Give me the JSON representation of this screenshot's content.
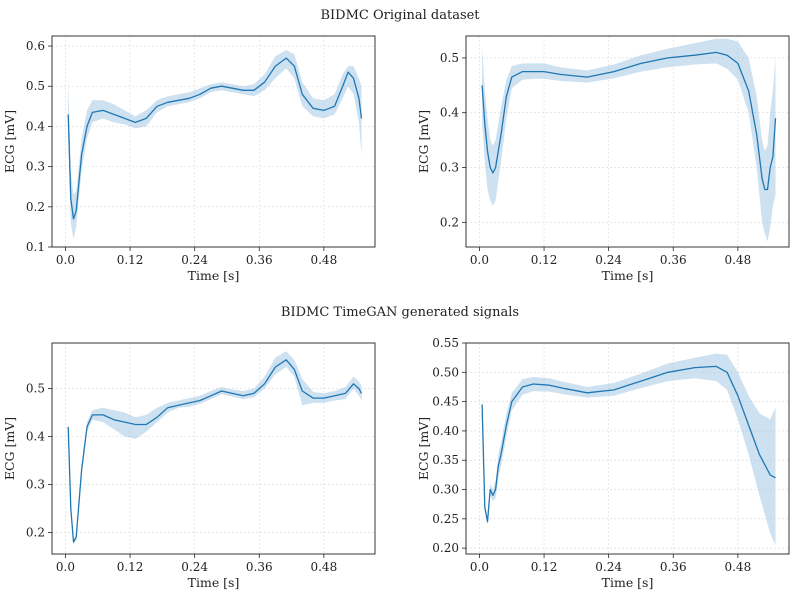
{
  "figure": {
    "top_title": "BIDMC Original dataset",
    "bottom_title": "BIDMC TimeGAN generated signals"
  },
  "colors": {
    "line": "#1f77b4",
    "band": "#a6c8e4",
    "grid": "#d9d9d9",
    "frame": "#222222"
  },
  "chart_data": [
    {
      "type": "line",
      "panel": "original-left",
      "xlabel": "Time [s]",
      "ylabel": "ECG [mV]",
      "xlim": [
        -0.025,
        0.575
      ],
      "ylim": [
        0.1,
        0.625
      ],
      "xticks": [
        0.0,
        0.12,
        0.24,
        0.36,
        0.48
      ],
      "xtick_labels": [
        "0.0",
        "0.12",
        "0.24",
        "0.36",
        "0.48"
      ],
      "yticks": [
        0.1,
        0.2,
        0.3,
        0.4,
        0.5,
        0.6
      ],
      "ytick_labels": [
        "0.1",
        "0.2",
        "0.3",
        "0.4",
        "0.5",
        "0.6"
      ],
      "grid": true,
      "series": [
        {
          "x": [
            0.005,
            0.01,
            0.015,
            0.02,
            0.03,
            0.04,
            0.05,
            0.07,
            0.09,
            0.11,
            0.13,
            0.15,
            0.17,
            0.19,
            0.21,
            0.23,
            0.25,
            0.27,
            0.29,
            0.31,
            0.33,
            0.35,
            0.37,
            0.39,
            0.41,
            0.425,
            0.44,
            0.46,
            0.48,
            0.5,
            0.515,
            0.525,
            0.535,
            0.545,
            0.55
          ],
          "y": [
            0.43,
            0.22,
            0.17,
            0.19,
            0.33,
            0.4,
            0.435,
            0.44,
            0.43,
            0.42,
            0.41,
            0.42,
            0.45,
            0.46,
            0.465,
            0.47,
            0.48,
            0.495,
            0.5,
            0.495,
            0.49,
            0.49,
            0.51,
            0.55,
            0.57,
            0.55,
            0.48,
            0.445,
            0.44,
            0.45,
            0.5,
            0.535,
            0.52,
            0.47,
            0.42
          ],
          "lower": [
            0.37,
            0.16,
            0.12,
            0.15,
            0.29,
            0.37,
            0.41,
            0.42,
            0.41,
            0.405,
            0.395,
            0.4,
            0.435,
            0.45,
            0.455,
            0.46,
            0.47,
            0.485,
            0.49,
            0.485,
            0.48,
            0.475,
            0.49,
            0.52,
            0.545,
            0.52,
            0.45,
            0.425,
            0.42,
            0.43,
            0.47,
            0.5,
            0.48,
            0.41,
            0.33
          ],
          "upper": [
            0.52,
            0.29,
            0.23,
            0.24,
            0.37,
            0.44,
            0.465,
            0.465,
            0.455,
            0.44,
            0.425,
            0.44,
            0.465,
            0.475,
            0.48,
            0.485,
            0.495,
            0.505,
            0.51,
            0.505,
            0.5,
            0.505,
            0.53,
            0.575,
            0.59,
            0.58,
            0.51,
            0.47,
            0.465,
            0.48,
            0.53,
            0.55,
            0.55,
            0.52,
            0.5
          ]
        }
      ]
    },
    {
      "type": "line",
      "panel": "original-right",
      "xlabel": "Time [s]",
      "ylabel": "ECG [mV]",
      "xlim": [
        -0.025,
        0.575
      ],
      "ylim": [
        0.155,
        0.54
      ],
      "xticks": [
        0.0,
        0.12,
        0.24,
        0.36,
        0.48
      ],
      "xtick_labels": [
        "0.0",
        "0.12",
        "0.24",
        "0.36",
        "0.48"
      ],
      "yticks": [
        0.2,
        0.3,
        0.4,
        0.5
      ],
      "ytick_labels": [
        "0.2",
        "0.3",
        "0.4",
        "0.5"
      ],
      "grid": true,
      "series": [
        {
          "x": [
            0.005,
            0.01,
            0.015,
            0.02,
            0.025,
            0.03,
            0.04,
            0.05,
            0.06,
            0.08,
            0.1,
            0.12,
            0.15,
            0.2,
            0.25,
            0.3,
            0.35,
            0.4,
            0.44,
            0.46,
            0.48,
            0.5,
            0.515,
            0.525,
            0.53,
            0.535,
            0.54,
            0.545,
            0.55
          ],
          "y": [
            0.45,
            0.38,
            0.33,
            0.3,
            0.29,
            0.3,
            0.36,
            0.43,
            0.465,
            0.475,
            0.475,
            0.475,
            0.47,
            0.465,
            0.475,
            0.49,
            0.5,
            0.505,
            0.51,
            0.505,
            0.49,
            0.44,
            0.36,
            0.28,
            0.26,
            0.26,
            0.3,
            0.32,
            0.39
          ],
          "lower": [
            0.38,
            0.31,
            0.26,
            0.24,
            0.23,
            0.24,
            0.31,
            0.39,
            0.445,
            0.46,
            0.462,
            0.462,
            0.458,
            0.455,
            0.463,
            0.475,
            0.483,
            0.488,
            0.49,
            0.48,
            0.46,
            0.4,
            0.3,
            0.2,
            0.18,
            0.165,
            0.19,
            0.23,
            0.25
          ],
          "upper": [
            0.52,
            0.44,
            0.39,
            0.35,
            0.34,
            0.35,
            0.41,
            0.46,
            0.485,
            0.49,
            0.49,
            0.49,
            0.483,
            0.477,
            0.488,
            0.505,
            0.517,
            0.527,
            0.535,
            0.535,
            0.53,
            0.5,
            0.43,
            0.35,
            0.33,
            0.34,
            0.4,
            0.44,
            0.5
          ]
        }
      ]
    },
    {
      "type": "line",
      "panel": "generated-left",
      "xlabel": "Time [s]",
      "ylabel": "ECG [mV]",
      "xlim": [
        -0.025,
        0.575
      ],
      "ylim": [
        0.155,
        0.595
      ],
      "xticks": [
        0.0,
        0.12,
        0.24,
        0.36,
        0.48
      ],
      "xtick_labels": [
        "0.0",
        "0.12",
        "0.24",
        "0.36",
        "0.48"
      ],
      "yticks": [
        0.2,
        0.3,
        0.4,
        0.5
      ],
      "ytick_labels": [
        "0.2",
        "0.3",
        "0.4",
        "0.5"
      ],
      "grid": true,
      "series": [
        {
          "x": [
            0.005,
            0.01,
            0.015,
            0.02,
            0.03,
            0.04,
            0.05,
            0.07,
            0.09,
            0.11,
            0.13,
            0.15,
            0.17,
            0.19,
            0.21,
            0.23,
            0.25,
            0.27,
            0.29,
            0.31,
            0.33,
            0.35,
            0.37,
            0.39,
            0.41,
            0.425,
            0.44,
            0.46,
            0.48,
            0.5,
            0.52,
            0.535,
            0.545,
            0.55
          ],
          "y": [
            0.42,
            0.25,
            0.18,
            0.19,
            0.33,
            0.42,
            0.445,
            0.445,
            0.435,
            0.43,
            0.425,
            0.425,
            0.44,
            0.46,
            0.465,
            0.47,
            0.475,
            0.485,
            0.495,
            0.49,
            0.485,
            0.49,
            0.51,
            0.545,
            0.56,
            0.54,
            0.495,
            0.48,
            0.48,
            0.485,
            0.49,
            0.51,
            0.5,
            0.49
          ],
          "lower": [
            0.42,
            0.25,
            0.175,
            0.185,
            0.32,
            0.41,
            0.435,
            0.43,
            0.415,
            0.4,
            0.395,
            0.41,
            0.43,
            0.45,
            0.46,
            0.462,
            0.468,
            0.478,
            0.488,
            0.483,
            0.478,
            0.482,
            0.5,
            0.53,
            0.545,
            0.525,
            0.465,
            0.47,
            0.47,
            0.475,
            0.478,
            0.5,
            0.485,
            0.475
          ],
          "upper": [
            0.42,
            0.25,
            0.185,
            0.195,
            0.34,
            0.43,
            0.455,
            0.46,
            0.455,
            0.45,
            0.44,
            0.445,
            0.46,
            0.47,
            0.475,
            0.48,
            0.485,
            0.495,
            0.503,
            0.498,
            0.495,
            0.5,
            0.525,
            0.565,
            0.578,
            0.56,
            0.52,
            0.493,
            0.49,
            0.495,
            0.503,
            0.525,
            0.515,
            0.505
          ]
        }
      ]
    },
    {
      "type": "line",
      "panel": "generated-right",
      "xlabel": "Time [s]",
      "ylabel": "ECG [mV]",
      "xlim": [
        -0.025,
        0.575
      ],
      "ylim": [
        0.19,
        0.55
      ],
      "xticks": [
        0.0,
        0.12,
        0.24,
        0.36,
        0.48
      ],
      "xtick_labels": [
        "0.0",
        "0.12",
        "0.24",
        "0.36",
        "0.48"
      ],
      "yticks": [
        0.2,
        0.25,
        0.3,
        0.35,
        0.4,
        0.45,
        0.5,
        0.55
      ],
      "ytick_labels": [
        "0.20",
        "0.25",
        "0.30",
        "0.35",
        "0.40",
        "0.45",
        "0.50",
        "0.55"
      ],
      "grid": true,
      "series": [
        {
          "x": [
            0.005,
            0.01,
            0.015,
            0.02,
            0.025,
            0.03,
            0.035,
            0.04,
            0.05,
            0.06,
            0.08,
            0.1,
            0.13,
            0.16,
            0.2,
            0.25,
            0.3,
            0.35,
            0.4,
            0.44,
            0.46,
            0.48,
            0.5,
            0.52,
            0.54,
            0.55
          ],
          "y": [
            0.445,
            0.27,
            0.245,
            0.3,
            0.29,
            0.3,
            0.34,
            0.36,
            0.41,
            0.45,
            0.475,
            0.48,
            0.478,
            0.472,
            0.465,
            0.47,
            0.485,
            0.5,
            0.508,
            0.51,
            0.5,
            0.46,
            0.41,
            0.36,
            0.325,
            0.32
          ],
          "lower": [
            0.445,
            0.265,
            0.24,
            0.29,
            0.28,
            0.285,
            0.32,
            0.34,
            0.39,
            0.435,
            0.462,
            0.468,
            0.467,
            0.462,
            0.457,
            0.46,
            0.473,
            0.485,
            0.49,
            0.485,
            0.47,
            0.42,
            0.36,
            0.29,
            0.225,
            0.205
          ],
          "upper": [
            0.445,
            0.275,
            0.25,
            0.31,
            0.3,
            0.315,
            0.36,
            0.38,
            0.43,
            0.465,
            0.488,
            0.492,
            0.49,
            0.483,
            0.475,
            0.482,
            0.498,
            0.515,
            0.525,
            0.532,
            0.53,
            0.5,
            0.46,
            0.43,
            0.42,
            0.44
          ]
        }
      ]
    }
  ]
}
